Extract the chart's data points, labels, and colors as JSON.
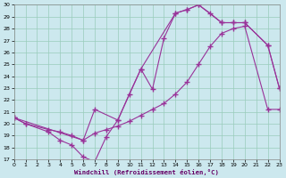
{
  "xlabel": "Windchill (Refroidissement éolien,°C)",
  "bg_color": "#cce8ee",
  "line_color": "#993399",
  "grid_color": "#99ccbb",
  "xlim": [
    0,
    23
  ],
  "ylim": [
    17,
    30
  ],
  "xticks": [
    0,
    1,
    2,
    3,
    4,
    5,
    6,
    7,
    8,
    9,
    10,
    11,
    12,
    13,
    14,
    15,
    16,
    17,
    18,
    19,
    20,
    21,
    22,
    23
  ],
  "yticks": [
    17,
    18,
    19,
    20,
    21,
    22,
    23,
    24,
    25,
    26,
    27,
    28,
    29,
    30
  ],
  "line_temp_x": [
    0,
    1,
    3,
    4,
    5,
    6,
    7,
    8,
    9,
    10,
    11,
    12,
    13,
    14,
    15,
    16,
    17,
    18,
    19,
    20,
    22,
    23
  ],
  "line_temp_y": [
    20.5,
    20.0,
    19.5,
    19.3,
    19.0,
    18.6,
    19.2,
    19.5,
    19.8,
    20.2,
    20.7,
    21.2,
    21.7,
    22.5,
    23.5,
    25.0,
    26.5,
    27.6,
    28.0,
    28.2,
    21.2,
    21.2
  ],
  "line_wc_x": [
    0,
    1,
    3,
    4,
    5,
    6,
    7,
    8,
    9,
    10,
    11,
    12,
    13,
    14,
    15,
    16,
    17,
    18,
    19,
    20,
    22,
    23
  ],
  "line_wc_y": [
    20.5,
    20.0,
    19.3,
    18.6,
    18.2,
    17.2,
    16.8,
    18.9,
    20.3,
    22.5,
    24.6,
    22.9,
    27.2,
    29.3,
    29.6,
    30.0,
    29.3,
    28.5,
    28.5,
    28.5,
    26.6,
    23.0
  ],
  "line_ref_x": [
    0,
    6,
    7,
    9,
    11,
    14,
    15,
    16,
    18,
    19,
    20,
    22,
    23
  ],
  "line_ref_y": [
    20.5,
    18.6,
    21.2,
    20.3,
    24.6,
    29.3,
    29.6,
    30.0,
    28.5,
    28.5,
    28.5,
    26.6,
    23.0
  ]
}
